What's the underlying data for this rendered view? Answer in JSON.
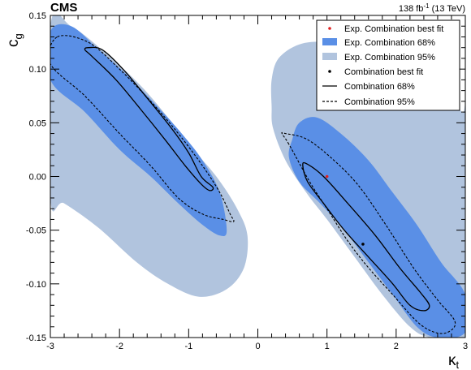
{
  "header": {
    "experiment": "CMS",
    "lumi_prefix": "138 fb",
    "lumi_exponent": "-1",
    "lumi_suffix": " (13 TeV)"
  },
  "colors": {
    "exp68": "#5a8fe6",
    "exp95": "#b1c4de",
    "exp_bestfit": "#e02020",
    "obs": "#000000"
  },
  "chart_data": {
    "type": "contour",
    "xlabel": "κ",
    "xlabel_sub": "t",
    "ylabel": "c",
    "ylabel_sub": "g",
    "xlim": [
      -3,
      3
    ],
    "ylim": [
      -0.15,
      0.15
    ],
    "xticks": [
      "-3",
      "-2",
      "-1",
      "0",
      "1",
      "2",
      "3"
    ],
    "yticks": [
      "-0.15",
      "-0.10",
      "-0.05",
      "0.00",
      "0.05",
      "0.10",
      "0.15"
    ],
    "legend_position": "top-right",
    "legend": [
      {
        "key": "exp_best",
        "label": "Exp. Combination best fit"
      },
      {
        "key": "exp68",
        "label": "Exp. Combination 68%"
      },
      {
        "key": "exp95",
        "label": "Exp. Combination 95%"
      },
      {
        "key": "obs_best",
        "label": "Combination best fit"
      },
      {
        "key": "obs68",
        "label": "Combination 68%"
      },
      {
        "key": "obs95",
        "label": "Combination 95%"
      }
    ],
    "best_fit": {
      "expected": [
        1.0,
        0.0
      ],
      "observed": [
        1.52,
        -0.063
      ]
    },
    "contours": {
      "exp95": [
        [
          [
            -3.0,
            0.14
          ],
          [
            -2.7,
            0.14
          ],
          [
            -2.2,
            0.115
          ],
          [
            -1.7,
            0.085
          ],
          [
            -1.3,
            0.055
          ],
          [
            -1.0,
            0.03
          ],
          [
            -0.6,
            0.0
          ],
          [
            -0.3,
            -0.03
          ],
          [
            -0.15,
            -0.055
          ],
          [
            -0.2,
            -0.085
          ],
          [
            -0.45,
            -0.105
          ],
          [
            -0.85,
            -0.112
          ],
          [
            -1.3,
            -0.1
          ],
          [
            -1.75,
            -0.08
          ],
          [
            -2.3,
            -0.048
          ],
          [
            -2.8,
            -0.025
          ],
          [
            -3.0,
            -0.02
          ]
        ],
        [
          [
            0.2,
            0.065
          ],
          [
            0.2,
            0.09
          ],
          [
            0.3,
            0.11
          ],
          [
            0.6,
            0.123
          ],
          [
            1.0,
            0.125
          ],
          [
            1.6,
            0.117
          ],
          [
            2.2,
            0.1
          ],
          [
            2.65,
            0.08
          ],
          [
            2.95,
            0.06
          ],
          [
            3.0,
            0.05
          ],
          [
            3.0,
            -0.15
          ],
          [
            2.5,
            -0.15
          ],
          [
            2.2,
            -0.14
          ],
          [
            1.8,
            -0.11
          ],
          [
            1.4,
            -0.075
          ],
          [
            1.0,
            -0.04
          ],
          [
            0.7,
            -0.015
          ],
          [
            0.4,
            0.015
          ],
          [
            0.22,
            0.045
          ]
        ]
      ],
      "exp68": [
        [
          [
            -3.0,
            0.135
          ],
          [
            -2.7,
            0.14
          ],
          [
            -2.3,
            0.118
          ],
          [
            -1.9,
            0.095
          ],
          [
            -1.45,
            0.065
          ],
          [
            -1.1,
            0.04
          ],
          [
            -0.8,
            0.015
          ],
          [
            -0.55,
            -0.015
          ],
          [
            -0.45,
            -0.05
          ],
          [
            -0.55,
            -0.055
          ],
          [
            -0.8,
            -0.045
          ],
          [
            -1.15,
            -0.025
          ],
          [
            -1.55,
            0.0
          ],
          [
            -2.0,
            0.025
          ],
          [
            -2.5,
            0.06
          ],
          [
            -3.0,
            0.09
          ]
        ],
        [
          [
            0.5,
            0.035
          ],
          [
            0.6,
            0.05
          ],
          [
            0.85,
            0.055
          ],
          [
            1.2,
            0.04
          ],
          [
            1.6,
            0.015
          ],
          [
            1.95,
            -0.015
          ],
          [
            2.3,
            -0.045
          ],
          [
            2.65,
            -0.08
          ],
          [
            3.0,
            -0.11
          ],
          [
            3.0,
            -0.145
          ],
          [
            2.6,
            -0.15
          ],
          [
            2.3,
            -0.14
          ],
          [
            1.95,
            -0.11
          ],
          [
            1.6,
            -0.08
          ],
          [
            1.25,
            -0.05
          ],
          [
            0.9,
            -0.025
          ],
          [
            0.6,
            -0.005
          ],
          [
            0.45,
            0.018
          ]
        ]
      ],
      "obs95": [
        [
          [
            -2.9,
            0.13
          ],
          [
            -2.45,
            0.125
          ],
          [
            -2.0,
            0.1
          ],
          [
            -1.55,
            0.07
          ],
          [
            -1.15,
            0.04
          ],
          [
            -0.8,
            0.01
          ],
          [
            -0.55,
            -0.015
          ],
          [
            -0.4,
            -0.035
          ],
          [
            -0.35,
            -0.042
          ],
          [
            -0.5,
            -0.04
          ],
          [
            -0.8,
            -0.035
          ],
          [
            -1.15,
            -0.02
          ],
          [
            -1.55,
            0.01
          ],
          [
            -2.0,
            0.04
          ],
          [
            -2.5,
            0.075
          ],
          [
            -3.0,
            0.105
          ]
        ],
        [
          [
            0.45,
            0.03
          ],
          [
            0.35,
            0.04
          ],
          [
            0.4,
            0.04
          ],
          [
            0.7,
            0.035
          ],
          [
            1.05,
            0.018
          ],
          [
            1.45,
            -0.008
          ],
          [
            1.85,
            -0.045
          ],
          [
            2.25,
            -0.085
          ],
          [
            2.6,
            -0.115
          ],
          [
            2.85,
            -0.135
          ],
          [
            2.75,
            -0.145
          ],
          [
            2.55,
            -0.145
          ],
          [
            2.3,
            -0.135
          ],
          [
            1.95,
            -0.11
          ],
          [
            1.6,
            -0.085
          ],
          [
            1.3,
            -0.06
          ],
          [
            1.0,
            -0.03
          ],
          [
            0.75,
            -0.005
          ]
        ]
      ],
      "obs68": [
        [
          [
            -2.45,
            0.12
          ],
          [
            -2.25,
            0.118
          ],
          [
            -1.95,
            0.1
          ],
          [
            -1.6,
            0.073
          ],
          [
            -1.25,
            0.045
          ],
          [
            -1.0,
            0.022
          ],
          [
            -0.82,
            0.0
          ],
          [
            -0.65,
            -0.01
          ],
          [
            -0.7,
            -0.013
          ],
          [
            -0.82,
            -0.007
          ],
          [
            -1.05,
            0.01
          ],
          [
            -1.35,
            0.035
          ],
          [
            -1.7,
            0.063
          ],
          [
            -2.05,
            0.09
          ],
          [
            -2.4,
            0.112
          ],
          [
            -2.5,
            0.118
          ]
        ],
        [
          [
            0.65,
            0.01
          ],
          [
            0.7,
            0.012
          ],
          [
            0.95,
            0.0
          ],
          [
            1.3,
            -0.025
          ],
          [
            1.7,
            -0.055
          ],
          [
            2.05,
            -0.085
          ],
          [
            2.35,
            -0.108
          ],
          [
            2.48,
            -0.12
          ],
          [
            2.4,
            -0.125
          ],
          [
            2.2,
            -0.12
          ],
          [
            1.95,
            -0.1
          ],
          [
            1.6,
            -0.075
          ],
          [
            1.25,
            -0.05
          ],
          [
            0.95,
            -0.025
          ],
          [
            0.72,
            -0.005
          ]
        ]
      ]
    }
  }
}
